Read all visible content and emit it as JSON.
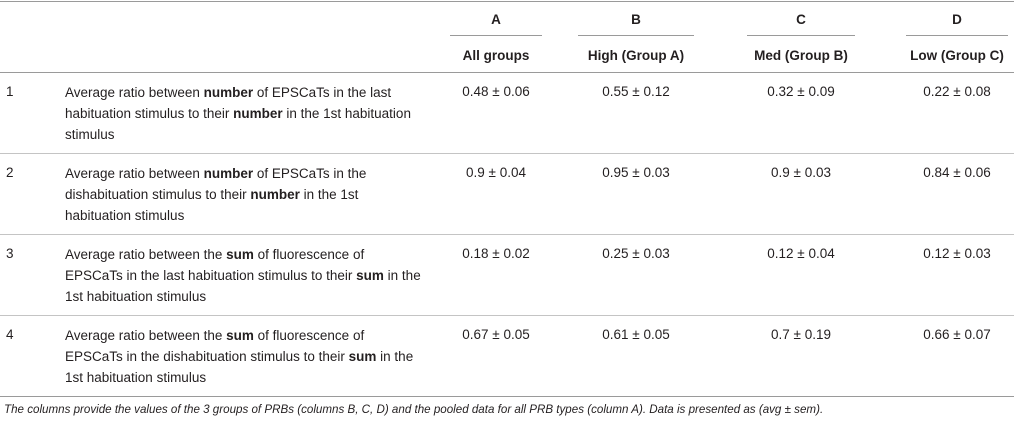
{
  "columns": [
    {
      "letter": "A",
      "subtitle": "All groups"
    },
    {
      "letter": "B",
      "subtitle": "High (Group A)"
    },
    {
      "letter": "C",
      "subtitle": "Med (Group B)"
    },
    {
      "letter": "D",
      "subtitle": "Low (Group C)"
    }
  ],
  "rows": [
    {
      "num": "1",
      "desc": [
        {
          "t": "Average ratio between "
        },
        {
          "b": "number"
        },
        {
          "t": " of EPSCaTs in the last habituation stimulus to their "
        },
        {
          "b": "number"
        },
        {
          "t": " in the 1st habituation stimulus"
        }
      ],
      "values": [
        "0.48 ± 0.06",
        "0.55 ± 0.12",
        "0.32 ± 0.09",
        "0.22 ± 0.08"
      ]
    },
    {
      "num": "2",
      "desc": [
        {
          "t": "Average ratio between "
        },
        {
          "b": "number"
        },
        {
          "t": " of EPSCaTs in the dishabituation stimulus to their "
        },
        {
          "b": "number"
        },
        {
          "t": " in the 1st habituation stimulus"
        }
      ],
      "values": [
        "0.9 ± 0.04",
        "0.95 ± 0.03",
        "0.9 ± 0.03",
        "0.84 ± 0.06"
      ]
    },
    {
      "num": "3",
      "desc": [
        {
          "t": "Average ratio between the "
        },
        {
          "b": "sum"
        },
        {
          "t": " of fluorescence of EPSCaTs in the last habituation stimulus to their "
        },
        {
          "b": "sum"
        },
        {
          "t": " in the 1st habituation stimulus"
        }
      ],
      "values": [
        "0.18 ± 0.02",
        "0.25 ± 0.03",
        "0.12 ± 0.04",
        "0.12 ± 0.03"
      ]
    },
    {
      "num": "4",
      "desc": [
        {
          "t": "Average ratio between the "
        },
        {
          "b": "sum"
        },
        {
          "t": " of fluorescence of EPSCaTs in the dishabituation stimulus to their "
        },
        {
          "b": "sum"
        },
        {
          "t": " in the 1st habituation stimulus"
        }
      ],
      "values": [
        "0.67 ± 0.05",
        "0.61 ± 0.05",
        "0.7 ± 0.19",
        "0.66 ± 0.07"
      ]
    }
  ],
  "footnote": "The columns provide the values of the 3 groups of PRBs (columns B, C, D) and the pooled data for all PRB types (column A). Data is presented as (avg ± sem)."
}
